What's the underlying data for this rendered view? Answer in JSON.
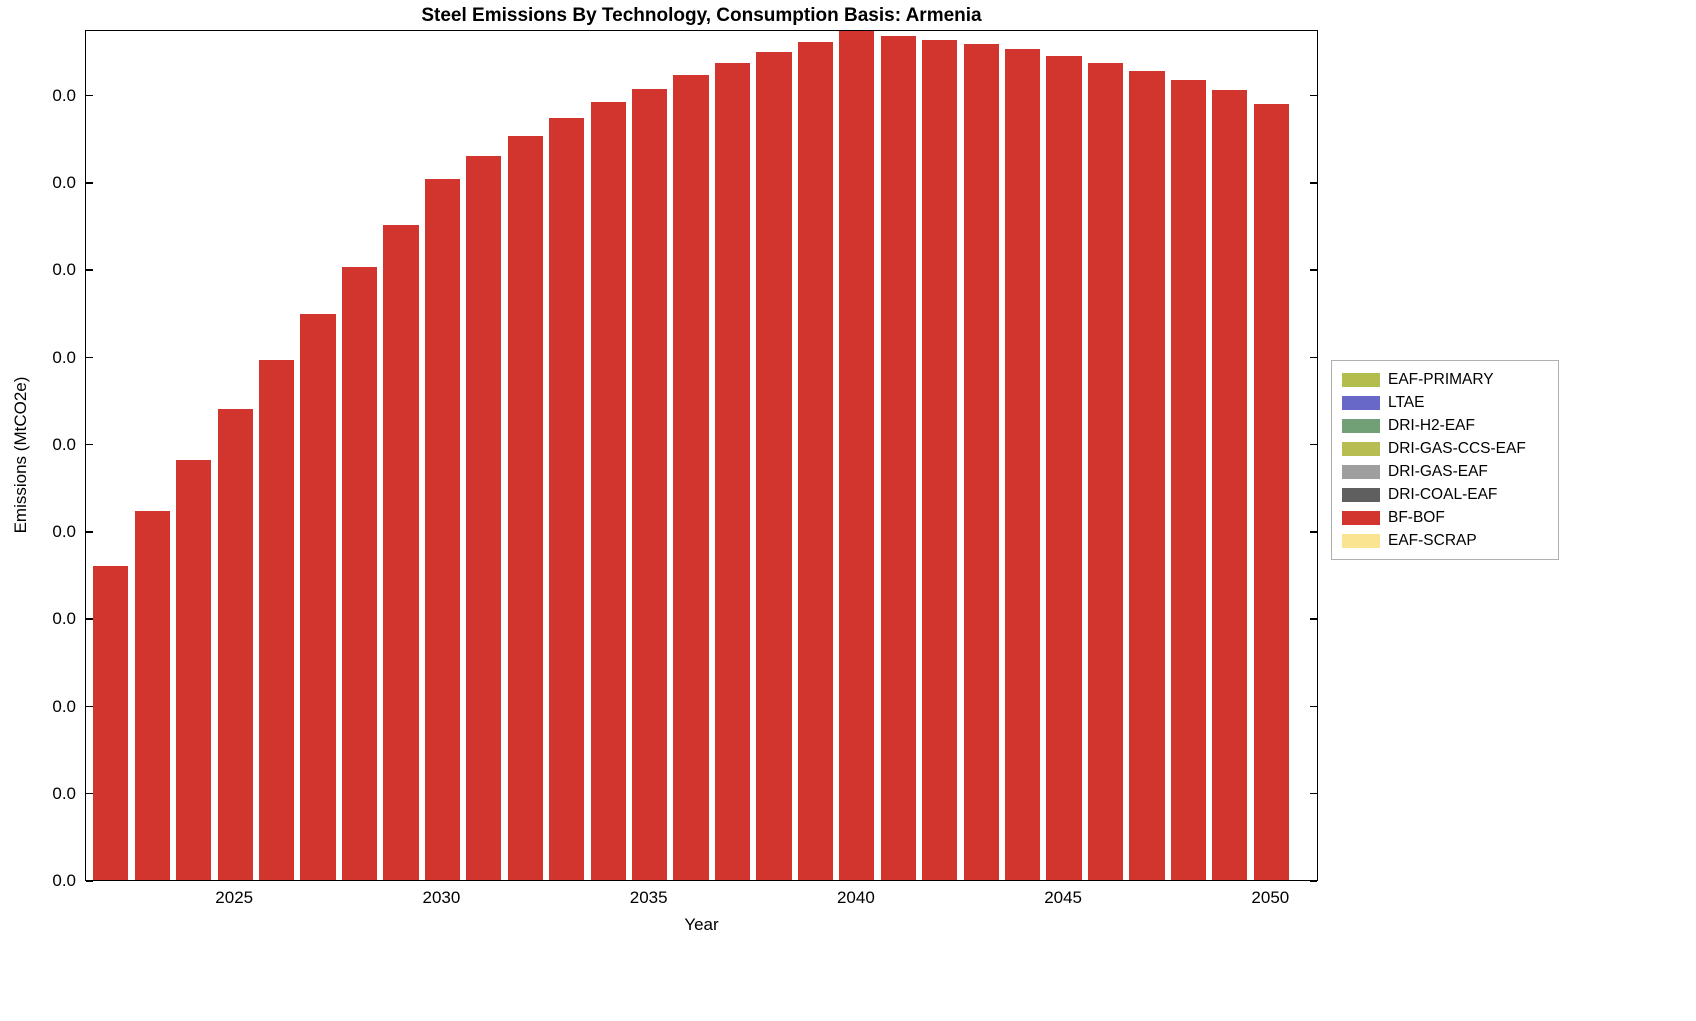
{
  "chart_data": {
    "type": "bar",
    "title": "Steel Emissions By Technology, Consumption Basis: Armenia",
    "xlabel": "Year",
    "ylabel": "Emissions (MtCO2e)",
    "grid": false,
    "background_color": "#ffffff",
    "categories": [
      2022,
      2023,
      2024,
      2025,
      2026,
      2027,
      2028,
      2029,
      2030,
      2031,
      2032,
      2033,
      2034,
      2035,
      2036,
      2037,
      2038,
      2039,
      2040,
      2041,
      2042,
      2043,
      2044,
      2045,
      2046,
      2047,
      2048,
      2049,
      2050
    ],
    "series": [
      {
        "name": "BF-BOF",
        "color": "#d2342e",
        "values": [
          0.37,
          0.435,
          0.495,
          0.555,
          0.612,
          0.667,
          0.722,
          0.772,
          0.826,
          0.853,
          0.876,
          0.897,
          0.916,
          0.932,
          0.948,
          0.962,
          0.975,
          0.987,
          1.0,
          0.994,
          0.99,
          0.985,
          0.979,
          0.971,
          0.962,
          0.953,
          0.942,
          0.931,
          0.914
        ]
      }
    ],
    "value_scale": "fraction of y-axis height; all y-axis tick labels display 0.0",
    "xlim": [
      2021.4,
      2051.15
    ],
    "ylim": [
      0,
      1
    ],
    "x_ticks": [
      2025,
      2030,
      2035,
      2040,
      2045,
      2050
    ],
    "y_tick_labels": [
      "0.0",
      "0.0",
      "0.0",
      "0.0",
      "0.0",
      "0.0",
      "0.0",
      "0.0",
      "0.0",
      "0.0"
    ],
    "legend": {
      "position": "right-outside",
      "entries": [
        {
          "label": "EAF-PRIMARY",
          "color": "#b2bd4e"
        },
        {
          "label": "LTAE",
          "color": "#6868c8"
        },
        {
          "label": "DRI-H2-EAF",
          "color": "#71a077"
        },
        {
          "label": "DRI-GAS-CCS-EAF",
          "color": "#b7bd51"
        },
        {
          "label": "DRI-GAS-EAF",
          "color": "#9e9e9e"
        },
        {
          "label": "DRI-COAL-EAF",
          "color": "#5f5f5f"
        },
        {
          "label": "BF-BOF",
          "color": "#d2342e"
        },
        {
          "label": "EAF-SCRAP",
          "color": "#fbe491"
        }
      ]
    }
  }
}
